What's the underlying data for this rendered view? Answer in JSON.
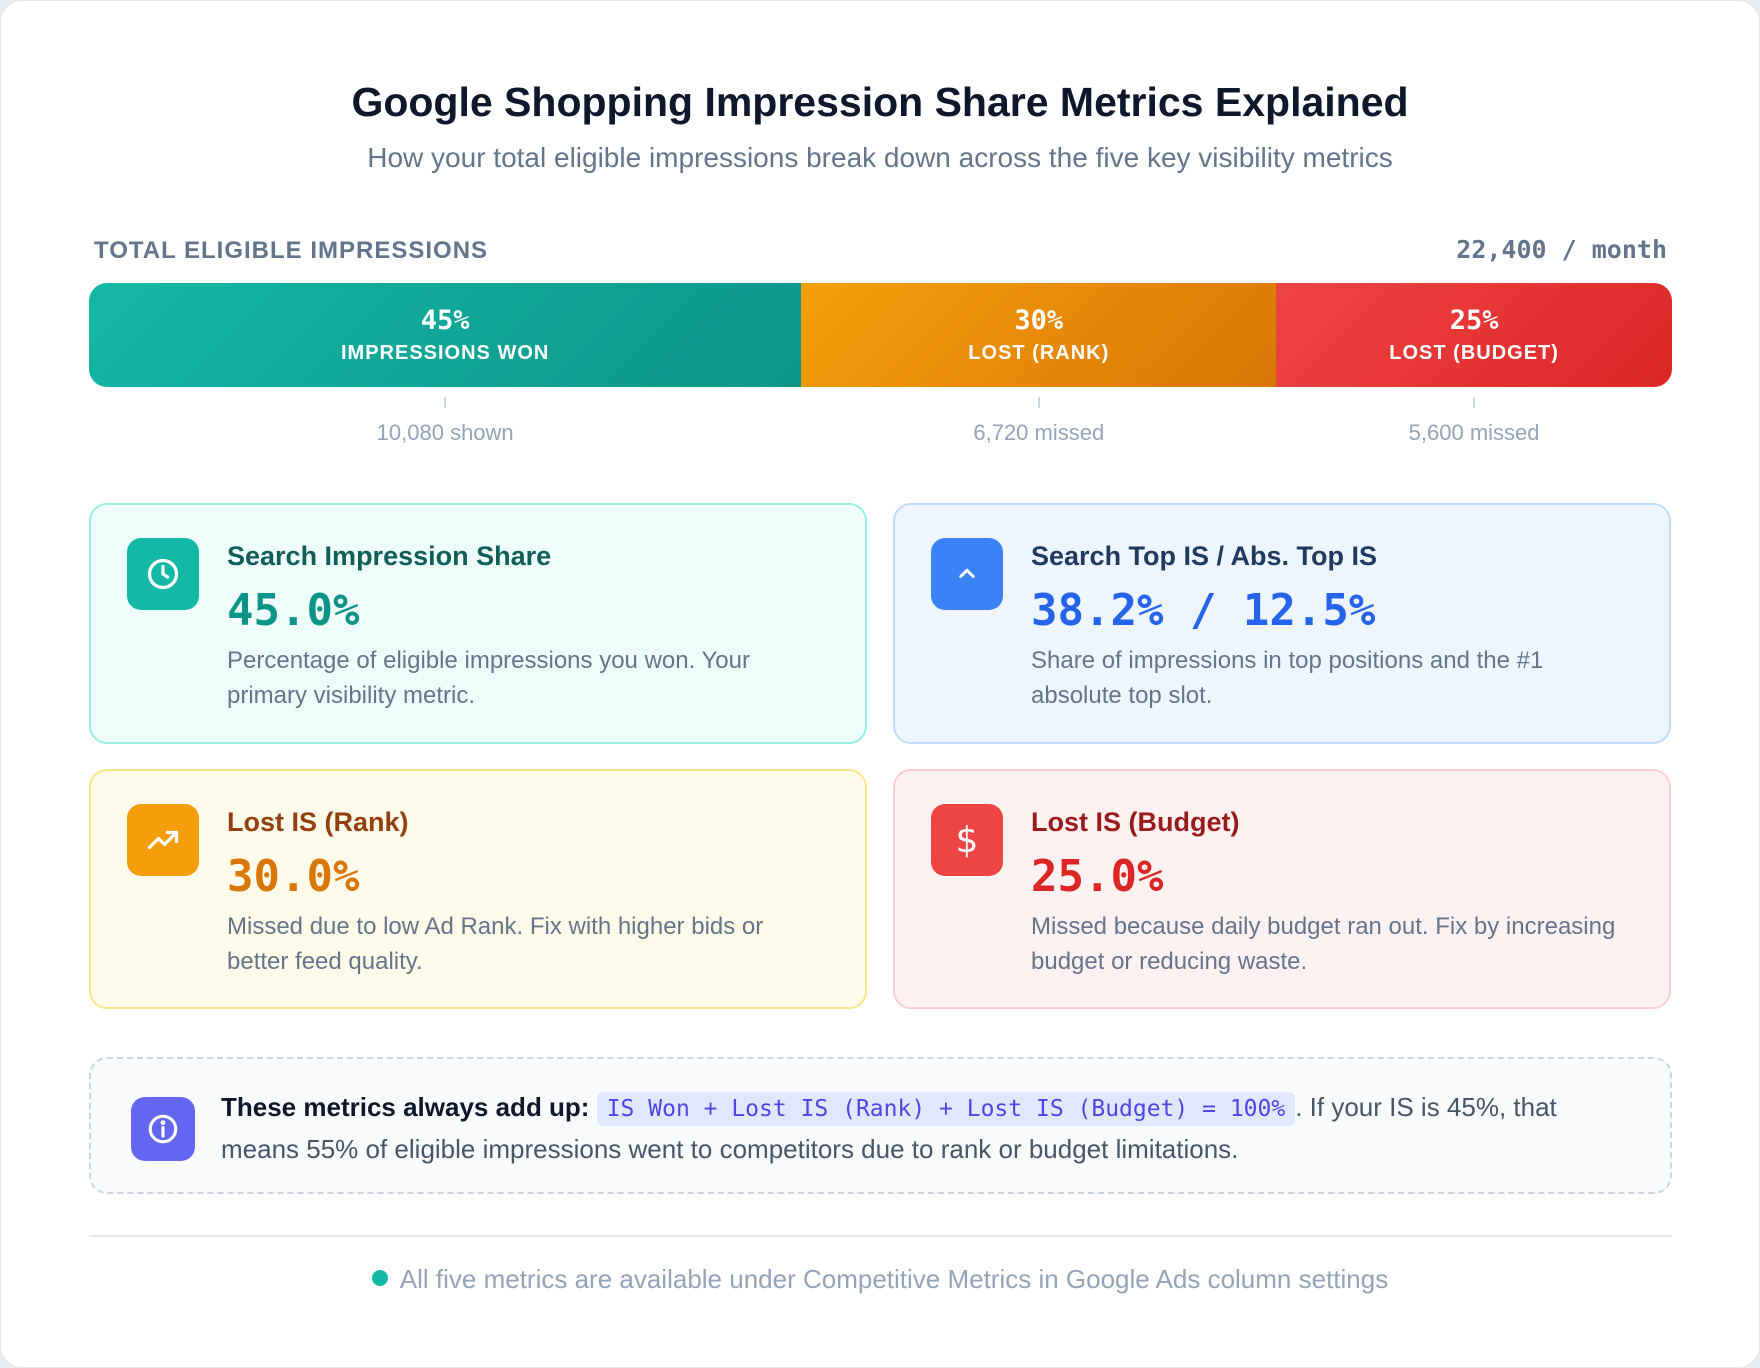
{
  "header": {
    "title": "Google Shopping Impression Share Metrics Explained",
    "subtitle": "How your total eligible impressions break down across the five key visibility metrics"
  },
  "bar": {
    "label": "TOTAL ELIGIBLE IMPRESSIONS",
    "total": "22,400 / month"
  },
  "chart_data": {
    "type": "bar",
    "orientation": "horizontal-stacked",
    "total_impressions": 22400,
    "categories": [
      "IMPRESSIONS WON",
      "LOST (RANK)",
      "LOST (BUDGET)"
    ],
    "values": [
      45,
      30,
      25
    ],
    "value_labels": [
      "45%",
      "30%",
      "25%"
    ],
    "counts": [
      10080,
      6720,
      5600
    ],
    "count_labels": [
      "10,080 shown",
      "6,720 missed",
      "5,600 missed"
    ],
    "colors": [
      "#14b8a6",
      "#f59e0b",
      "#ef4444"
    ]
  },
  "metrics": [
    {
      "title": "Search Impression Share",
      "value": "45.0%",
      "description": "Percentage of eligible impressions you won. Your primary visibility metric.",
      "icon": "clock-icon",
      "accent": "#14b8a6"
    },
    {
      "title": "Search Top IS / Abs. Top IS",
      "value": "38.2% / 12.5%",
      "description": "Share of impressions in top positions and the #1 absolute top slot.",
      "icon": "chevron-up-icon",
      "accent": "#3b82f6"
    },
    {
      "title": "Lost IS (Rank)",
      "value": "30.0%",
      "description": "Missed due to low Ad Rank. Fix with higher bids or better feed quality.",
      "icon": "trending-up-icon",
      "accent": "#f59e0b"
    },
    {
      "title": "Lost IS (Budget)",
      "value": "25.0%",
      "description": "Missed because daily budget ran out. Fix by increasing budget or reducing waste.",
      "icon": "dollar-icon",
      "accent": "#ef4444"
    }
  ],
  "note": {
    "strong": "These metrics always add up:",
    "code": "IS Won + Lost IS (Rank) + Lost IS (Budget) = 100%",
    "rest": ". If your IS is 45%, that means 55% of eligible impressions went to competitors due to rank or budget limitations.",
    "icon": "info-icon"
  },
  "footer": {
    "text": "All five metrics are available under Competitive Metrics in Google Ads column settings"
  }
}
